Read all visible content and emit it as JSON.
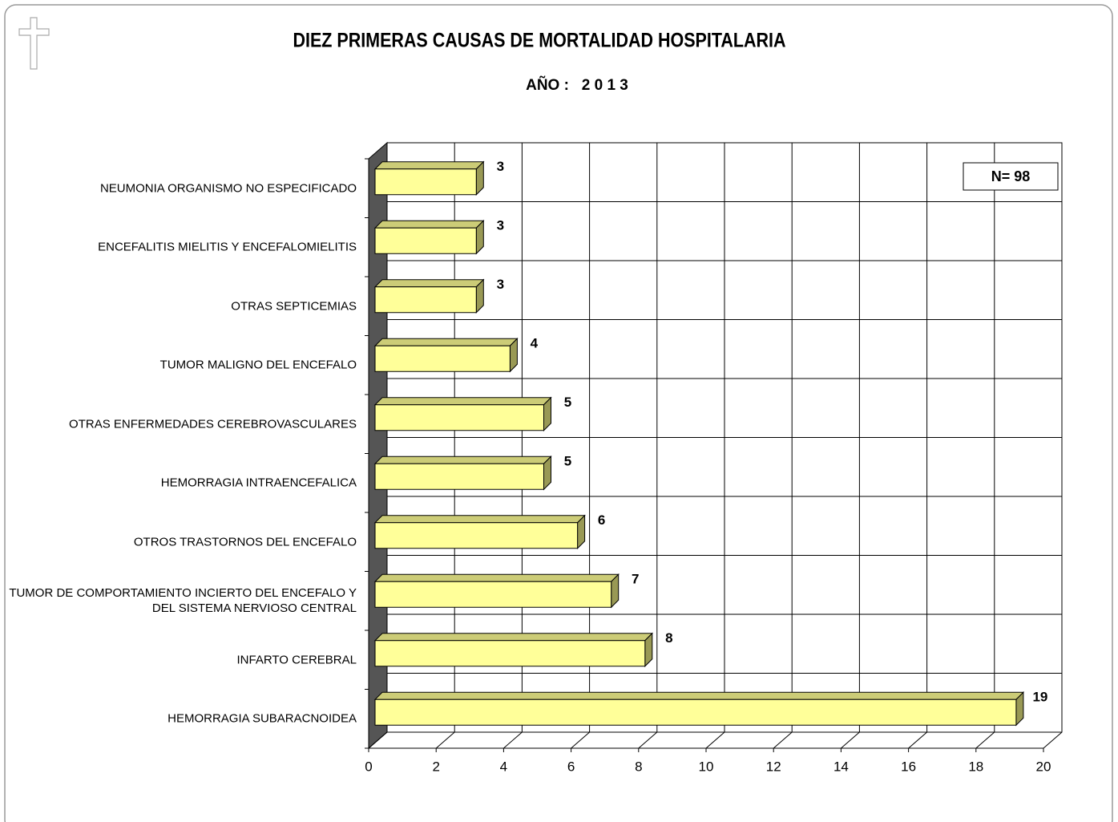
{
  "chart_data": {
    "type": "bar",
    "orientation": "horizontal",
    "title": "DIEZ  PRIMERAS CAUSAS DE MORTALIDAD HOSPITALARIA",
    "subtitle": "AÑO :   2 0 1 3",
    "annotation": "N= 98",
    "categories": [
      "NEUMONIA ORGANISMO NO ESPECIFICADO",
      "ENCEFALITIS MIELITIS Y ENCEFALOMIELITIS",
      "OTRAS SEPTICEMIAS",
      "TUMOR MALIGNO DEL ENCEFALO",
      "OTRAS ENFERMEDADES CEREBROVASCULARES",
      "HEMORRAGIA INTRAENCEFALICA",
      "OTROS TRASTORNOS DEL ENCEFALO",
      "TUMOR DE COMPORTAMIENTO INCIERTO DEL ENCEFALO Y DEL SISTEMA NERVIOSO CENTRAL",
      "INFARTO CEREBRAL",
      "HEMORRAGIA SUBARACNOIDEA"
    ],
    "values": [
      3,
      3,
      3,
      4,
      5,
      5,
      6,
      7,
      8,
      19
    ],
    "color": "#ffff99",
    "xlim": [
      0,
      20
    ],
    "xticks": [
      0,
      2,
      4,
      6,
      8,
      10,
      12,
      14,
      16,
      18,
      20
    ],
    "grid": true
  }
}
